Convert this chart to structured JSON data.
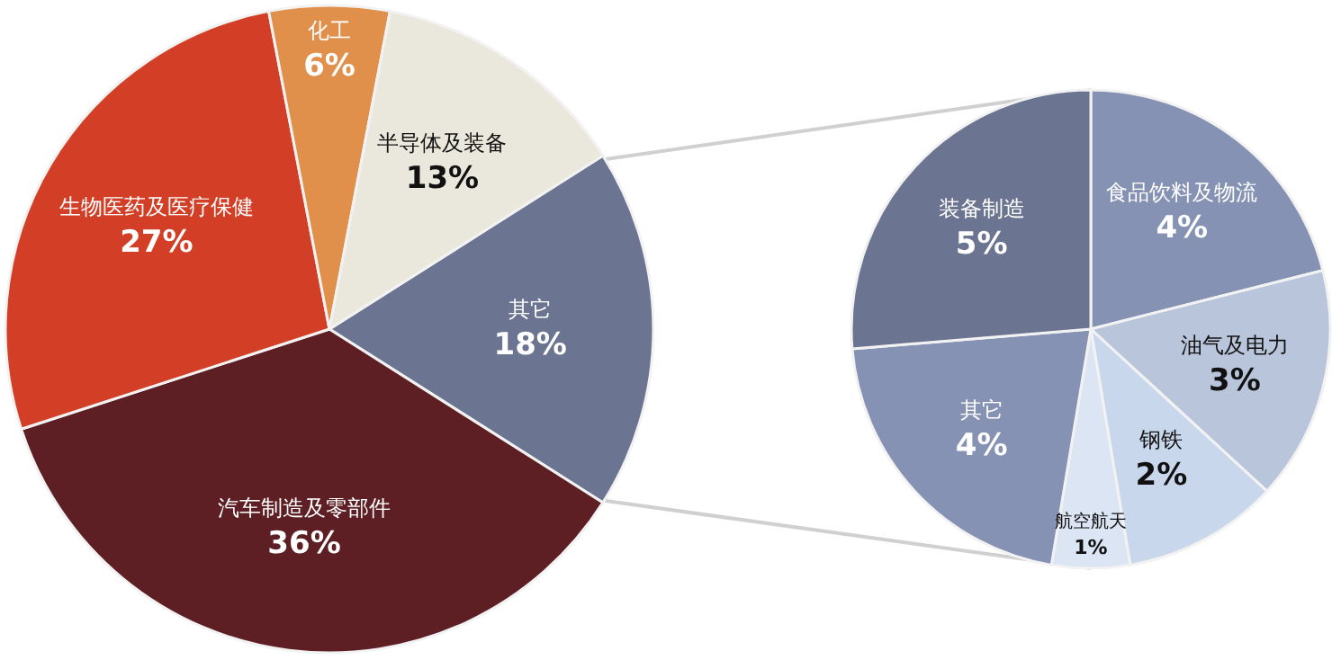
{
  "chart_data": [
    {
      "type": "pie",
      "categories": [
        "其它",
        "汽车制造及零部件",
        "生物医药及医疗保健",
        "化工",
        "半导体及装备"
      ],
      "values": [
        18,
        36,
        27,
        6,
        13
      ],
      "value_labels": [
        "18%",
        "36%",
        "27%",
        "6%",
        "13%"
      ],
      "colors": [
        "#6b7490",
        "#5e1f24",
        "#d23f26",
        "#e0904a",
        "#eae8dc"
      ],
      "legend": false
    },
    {
      "type": "pie",
      "categories": [
        "食品饮料及物流",
        "油气及电力",
        "钢铁",
        "航空航天",
        "其它",
        "装备制造"
      ],
      "values": [
        4,
        3,
        2,
        1,
        4,
        5
      ],
      "value_labels": [
        "4%",
        "3%",
        "2%",
        "1%",
        "4%",
        "5%"
      ],
      "colors": [
        "#8592b4",
        "#b9c5db",
        "#c9d7ec",
        "#dbe5f3",
        "#8592b4",
        "#6b7490"
      ],
      "legend": false
    }
  ]
}
